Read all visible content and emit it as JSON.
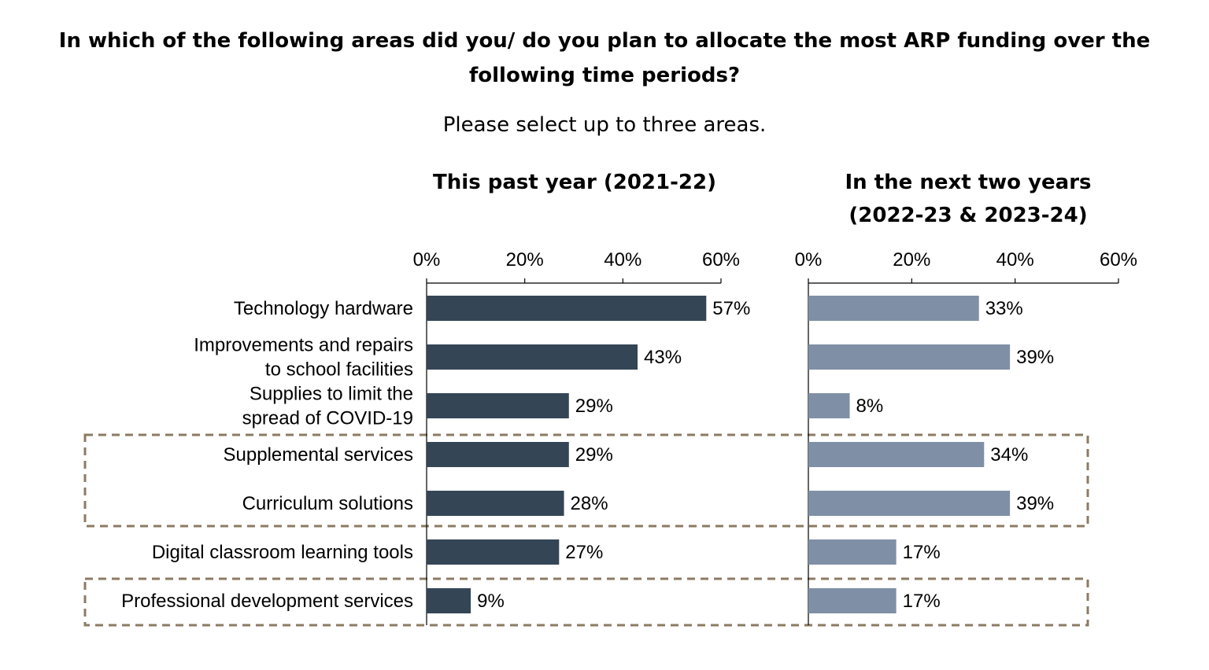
{
  "title_line1": "In which of the following areas did you/ do you plan to allocate the most ARP funding over the",
  "title_line2": "following time periods?",
  "subtitle": "Please select up to three areas.",
  "panel1_title": "This past year (2021-22)",
  "panel2_title_line1": "In the next two years",
  "panel2_title_line2": "(2022-23 & 2023-24)",
  "colors": {
    "past": "#344556",
    "next": "#7f8fa6",
    "highlight_border": "#8c7b63"
  },
  "chart_data": {
    "type": "bar",
    "orientation": "horizontal",
    "categories": [
      [
        "Technology hardware"
      ],
      [
        "Improvements and repairs",
        "to school facilities"
      ],
      [
        "Supplies to limit the",
        "spread of COVID-19"
      ],
      [
        "Supplemental services"
      ],
      [
        "Curriculum solutions"
      ],
      [
        "Digital classroom learning tools"
      ],
      [
        "Professional development services"
      ]
    ],
    "xlim": [
      0,
      60
    ],
    "ticks": [
      "0%",
      "20%",
      "40%",
      "60%"
    ],
    "tick_values": [
      0,
      20,
      40,
      60
    ],
    "series": [
      {
        "name": "This past year (2021-22)",
        "values": [
          57,
          43,
          29,
          29,
          28,
          27,
          9
        ],
        "labels": [
          "57%",
          "43%",
          "29%",
          "29%",
          "28%",
          "27%",
          "9%"
        ]
      },
      {
        "name": "In the next two years (2022-23 & 2023-24)",
        "values": [
          33,
          39,
          8,
          34,
          39,
          17,
          17
        ],
        "labels": [
          "33%",
          "39%",
          "8%",
          "34%",
          "39%",
          "17%",
          "17%"
        ]
      }
    ],
    "highlight_groups": [
      [
        3,
        4
      ],
      [
        6
      ]
    ]
  }
}
